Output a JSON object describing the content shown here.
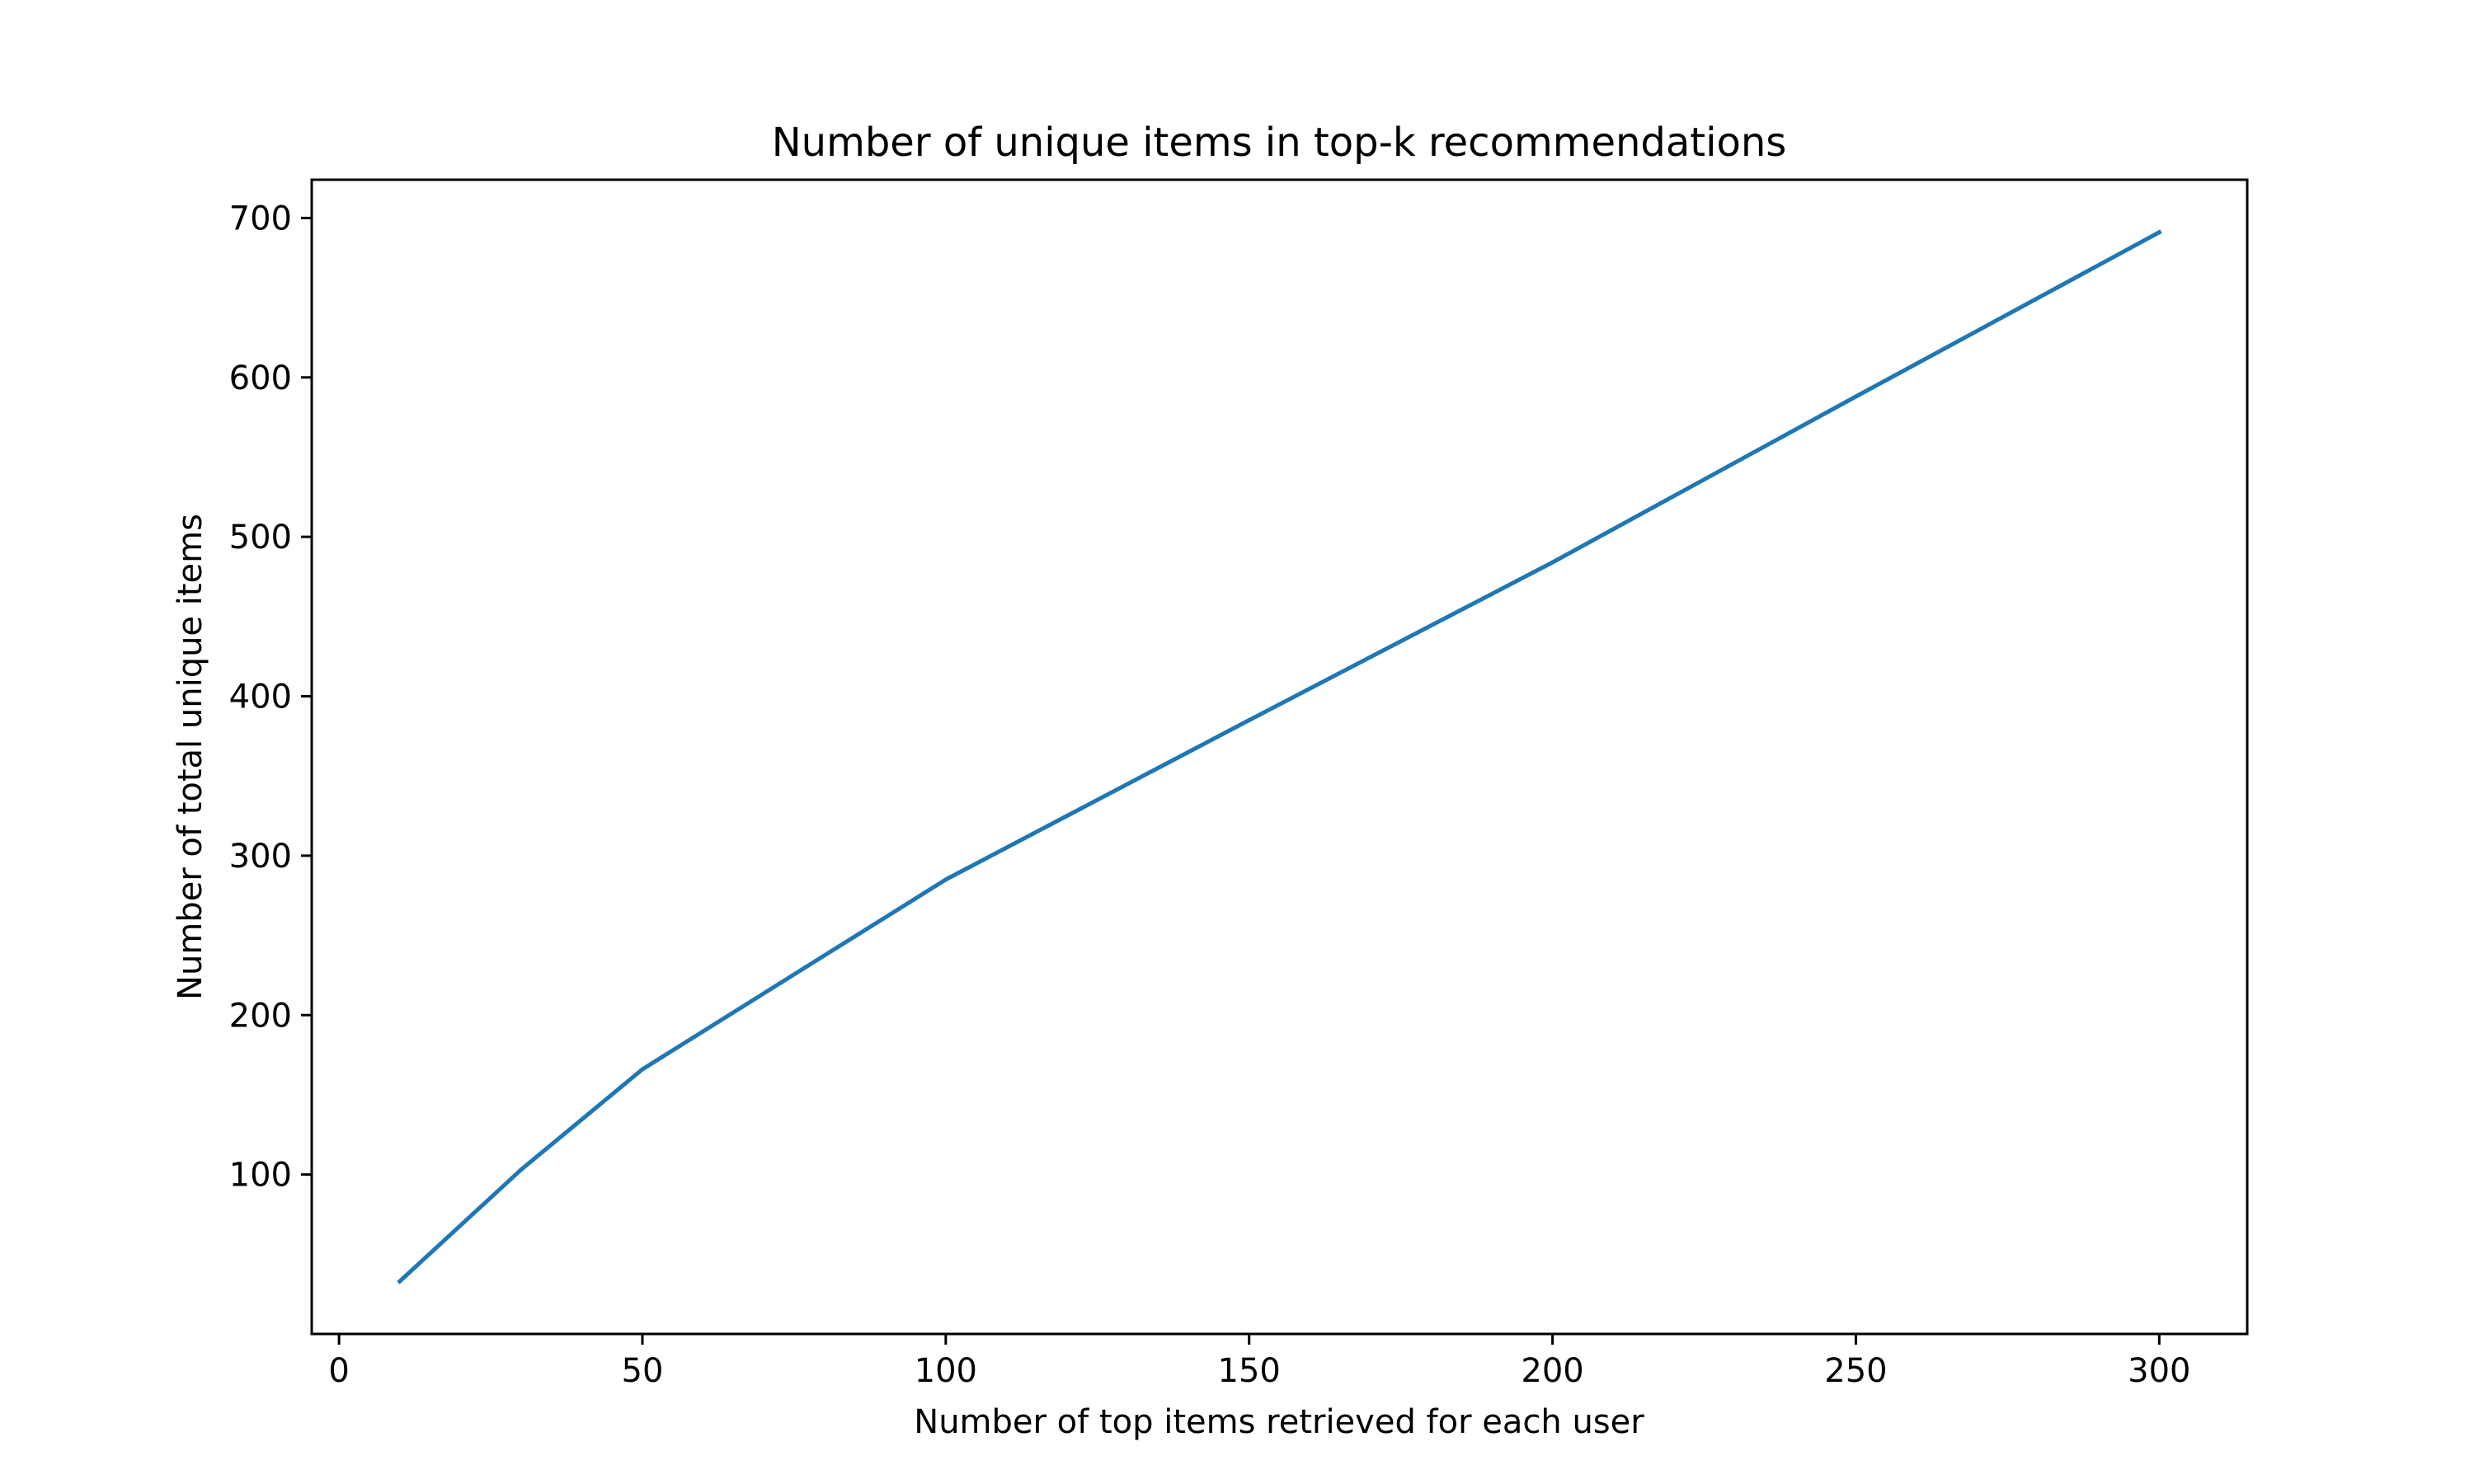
{
  "chart_data": {
    "type": "line",
    "title": "Number of unique items in top-k recommendations",
    "xlabel": "Number of top items retrieved for each user",
    "ylabel": "Number of total unique items",
    "xlim": [
      -4.5,
      314.5
    ],
    "ylim": [
      0,
      724
    ],
    "xticks": [
      0,
      50,
      100,
      150,
      200,
      250,
      300
    ],
    "yticks": [
      100,
      200,
      300,
      400,
      500,
      600,
      700
    ],
    "grid": false,
    "legend": "none",
    "series": [
      {
        "color": "#1f77b4",
        "x": [
          10,
          30,
          50,
          100,
          150,
          200,
          250,
          300
        ],
        "y": [
          33,
          103,
          166,
          285,
          385,
          484,
          588,
          691
        ]
      }
    ]
  }
}
